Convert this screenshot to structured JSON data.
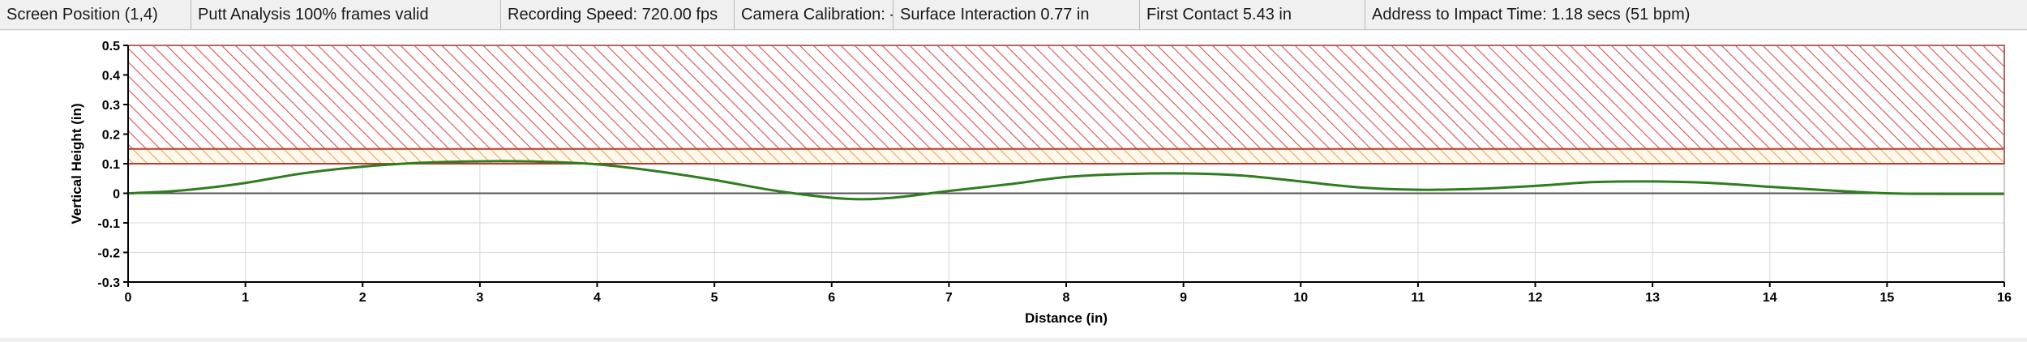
{
  "status_bar": {
    "screen_position": "Screen Position (1,4)",
    "putt_analysis": "Putt Analysis 100% frames valid",
    "recording_speed": "Recording Speed: 720.00 fps",
    "camera_calibration": "Camera Calibration: -(",
    "surface_interaction": "Surface Interaction 0.77 in",
    "first_contact": "First Contact 5.43 in",
    "address_to_impact": "Address to Impact Time: 1.18 secs (51 bpm)"
  },
  "colors": {
    "plot_background": "#ffffff",
    "hatch": "#d9534f",
    "zone_border": "#c0392b",
    "trace": "#2e7d1f",
    "zero_line": "#555555",
    "grid": "#d8d8d8",
    "axis": "#000000"
  },
  "chart_data": {
    "type": "line",
    "xlabel": "Distance (in)",
    "ylabel": "Vertical Height (in)",
    "xlim": [
      0,
      16
    ],
    "ylim": [
      -0.3,
      0.5
    ],
    "x_ticks": [
      0,
      1,
      2,
      3,
      4,
      5,
      6,
      7,
      8,
      9,
      10,
      11,
      12,
      13,
      14,
      15,
      16
    ],
    "x_tick_labels": [
      "0",
      "1",
      "2",
      "3",
      "4",
      "5",
      "6",
      "7",
      "8",
      "9",
      "10",
      "11",
      "12",
      "13",
      "14",
      "15",
      "16"
    ],
    "y_ticks": [
      -0.3,
      -0.2,
      -0.1,
      0,
      0.1,
      0.2,
      0.3,
      0.4,
      0.5
    ],
    "y_tick_labels": [
      "-0.3",
      "-0.2",
      "-0.1",
      "0",
      "0.1",
      "0.2",
      "0.3",
      "0.4",
      "0.5"
    ],
    "grid": true,
    "bands": [
      {
        "from": 0.1,
        "to": 0.5,
        "style": "hatched-red"
      },
      {
        "from": 0.1,
        "to": 0.15,
        "style": "hatched-orange"
      }
    ],
    "series": [
      {
        "x": [
          0,
          0.3,
          0.6,
          1.0,
          1.5,
          2.0,
          2.5,
          3.0,
          3.5,
          4.0,
          4.5,
          5.0,
          5.5,
          6.0,
          6.3,
          6.6,
          7.0,
          7.5,
          8.0,
          8.5,
          9.0,
          9.5,
          10.0,
          10.5,
          11.0,
          11.5,
          12.0,
          12.5,
          13.0,
          13.5,
          14.0,
          14.5,
          15.0,
          15.5,
          16.0
        ],
        "y": [
          0,
          0.005,
          0.015,
          0.035,
          0.068,
          0.09,
          0.103,
          0.108,
          0.107,
          0.098,
          0.075,
          0.045,
          0.01,
          -0.015,
          -0.02,
          -0.012,
          0.008,
          0.03,
          0.055,
          0.065,
          0.067,
          0.06,
          0.04,
          0.02,
          0.012,
          0.015,
          0.025,
          0.038,
          0.04,
          0.035,
          0.022,
          0.01,
          0.0,
          -0.002,
          -0.002
        ]
      }
    ]
  }
}
